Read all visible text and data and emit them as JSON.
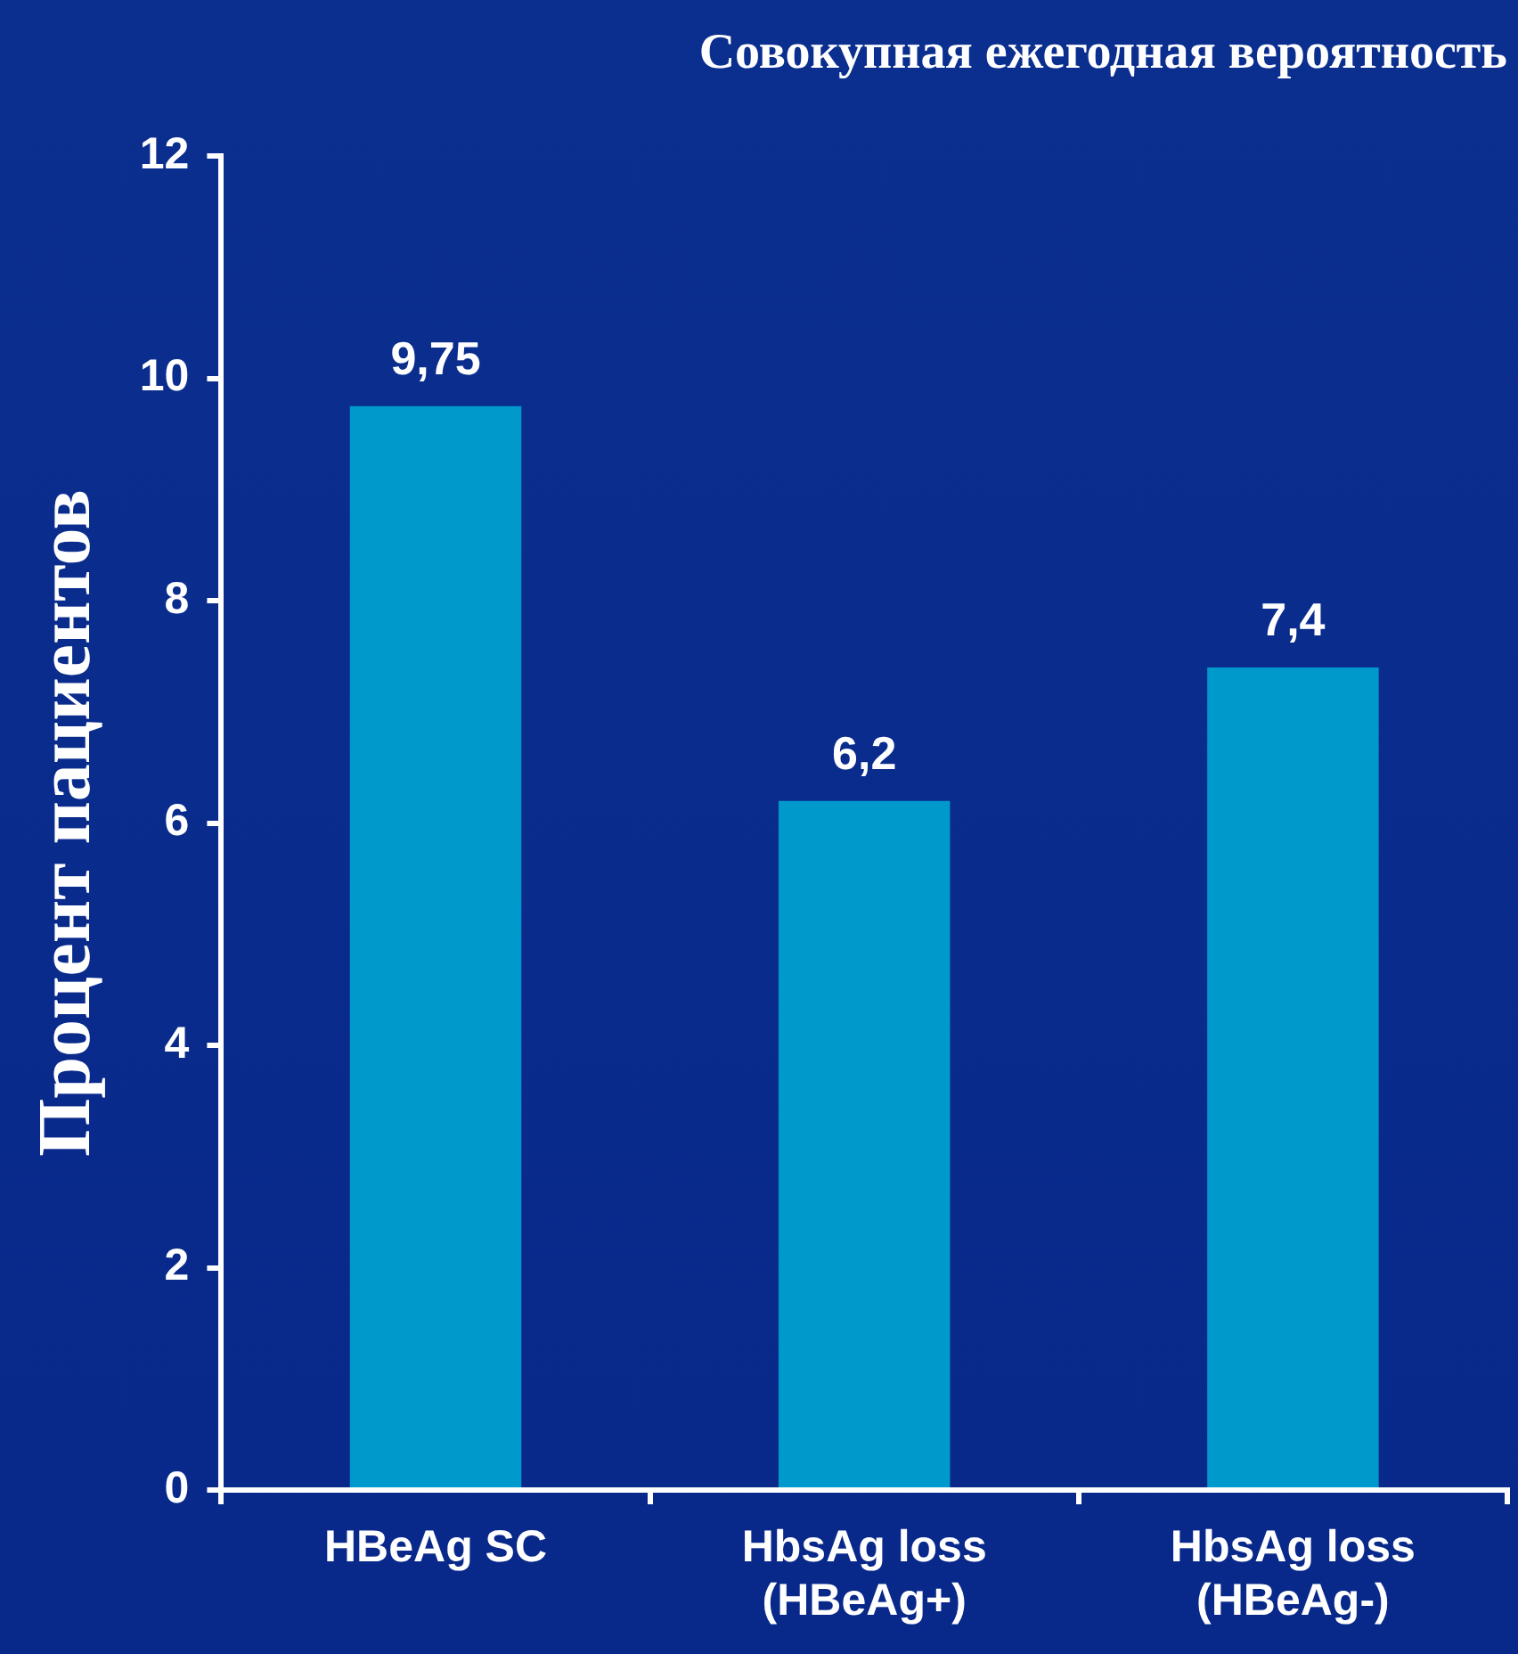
{
  "chart_data": {
    "type": "bar",
    "title": "Совокупная ежегодная вероятность",
    "ylabel": "Процент пациентов",
    "categories": [
      "HBeAg SC",
      "HbsAg loss (HBeAg+)",
      "HbsAg loss (HBeAg-)"
    ],
    "values": [
      9.75,
      6.2,
      7.4
    ],
    "value_labels": [
      "9,75",
      "6,2",
      "7,4"
    ],
    "color": "#0099cc",
    "ylim": [
      0,
      12
    ],
    "yticks": [
      0,
      2,
      4,
      6,
      8,
      10,
      12
    ],
    "grid": false,
    "legend": false
  }
}
